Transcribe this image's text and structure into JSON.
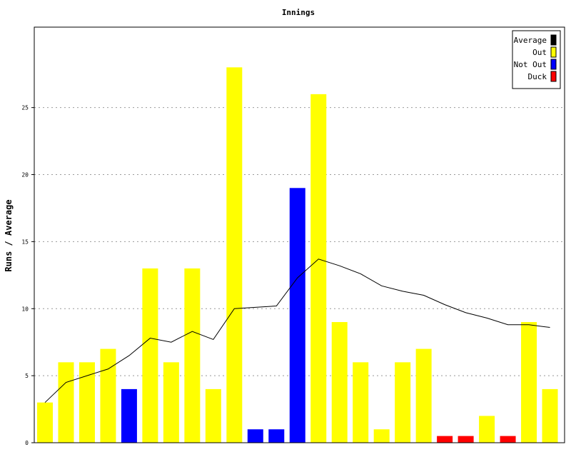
{
  "chart_data": {
    "type": "bar",
    "title": "Innings",
    "xlabel": "",
    "ylabel": "Runs / Average",
    "ylim": [
      0,
      31
    ],
    "yticks": [
      0,
      5,
      10,
      15,
      20,
      25
    ],
    "grid": true,
    "legend_position": "top-right",
    "legend": [
      {
        "name": "Average",
        "color": "#000000"
      },
      {
        "name": "Out",
        "color": "#ffff00"
      },
      {
        "name": "Not Out",
        "color": "#0000ff"
      },
      {
        "name": "Duck",
        "color": "#ff0000"
      }
    ],
    "bars": [
      {
        "value": 3,
        "status": "Out"
      },
      {
        "value": 6,
        "status": "Out"
      },
      {
        "value": 6,
        "status": "Out"
      },
      {
        "value": 7,
        "status": "Out"
      },
      {
        "value": 4,
        "status": "Not Out"
      },
      {
        "value": 13,
        "status": "Out"
      },
      {
        "value": 6,
        "status": "Out"
      },
      {
        "value": 13,
        "status": "Out"
      },
      {
        "value": 4,
        "status": "Out"
      },
      {
        "value": 28,
        "status": "Out"
      },
      {
        "value": 1,
        "status": "Not Out"
      },
      {
        "value": 1,
        "status": "Not Out"
      },
      {
        "value": 19,
        "status": "Not Out"
      },
      {
        "value": 26,
        "status": "Out"
      },
      {
        "value": 9,
        "status": "Out"
      },
      {
        "value": 6,
        "status": "Out"
      },
      {
        "value": 1,
        "status": "Out"
      },
      {
        "value": 6,
        "status": "Out"
      },
      {
        "value": 7,
        "status": "Out"
      },
      {
        "value": 0.5,
        "status": "Duck"
      },
      {
        "value": 0.5,
        "status": "Duck"
      },
      {
        "value": 2,
        "status": "Out"
      },
      {
        "value": 0.5,
        "status": "Duck"
      },
      {
        "value": 9,
        "status": "Out"
      },
      {
        "value": 4,
        "status": "Out"
      }
    ],
    "average_series": {
      "name": "Average",
      "values": [
        3,
        4.5,
        5,
        5.5,
        6.5,
        7.8,
        7.5,
        8.3,
        7.7,
        10,
        10.1,
        10.2,
        12.3,
        13.7,
        13.2,
        12.6,
        11.7,
        11.3,
        11.0,
        10.3,
        9.7,
        9.3,
        8.8,
        8.8,
        8.6
      ]
    }
  }
}
